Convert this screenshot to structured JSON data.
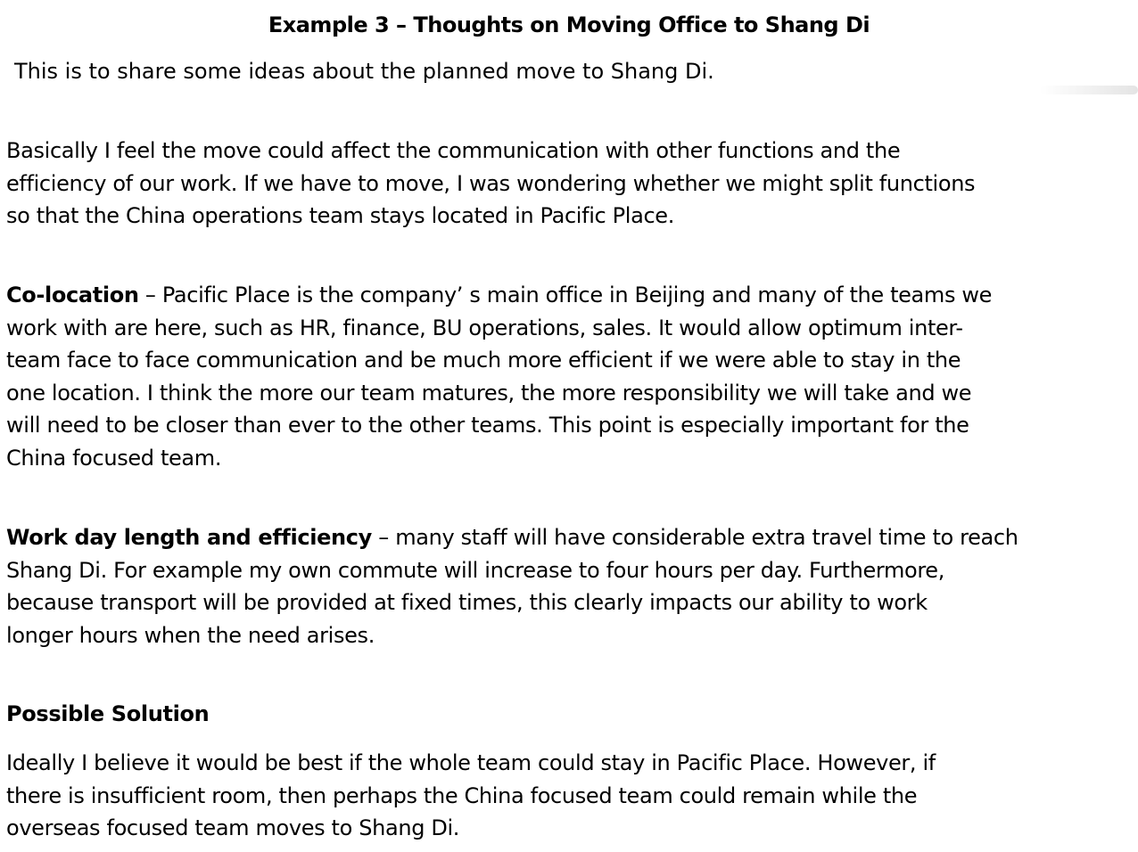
{
  "document": {
    "title": "Example 3 – Thoughts on Moving Office to Shang Di",
    "intro": "This is to share some ideas about the planned move to Shang Di.",
    "paragraph_1": {
      "lines": [
        "Basically I feel the move could affect the communication with other functions and the",
        "efficiency of our work.  If we have to move, I was wondering whether we might split functions",
        "so that the China operations team stays located in Pacific Place."
      ]
    },
    "paragraph_2": {
      "heading": "Co-location",
      "lines": [
        " – Pacific Place is the company’ s main office in Beijing and many of the teams we",
        "work with are here, such as HR, finance, BU operations, sales.  It would allow optimum inter-",
        "team face to face communication and be much more efficient if we were able to stay in the",
        "one location. I think the more our team matures, the more responsibility we will take and we",
        "will need to be closer than ever to the other teams. This point is especially important for the",
        "China focused team."
      ]
    },
    "paragraph_3": {
      "heading": "Work day length and efficiency",
      "lines": [
        " – many staff will have considerable extra travel time to reach",
        "Shang Di.  For example my own commute will increase to four hours per day.  Furthermore,",
        "because transport will be provided at fixed times, this clearly impacts our ability to work",
        "longer hours when the need arises."
      ]
    },
    "solution_heading": "Possible Solution",
    "paragraph_4": {
      "lines": [
        "Ideally I believe it would be best if the whole team could stay in Pacific Place.  However, if",
        "there is insufficient room, then perhaps the China focused team could remain while the",
        "overseas focused team moves to Shang Di."
      ]
    }
  }
}
